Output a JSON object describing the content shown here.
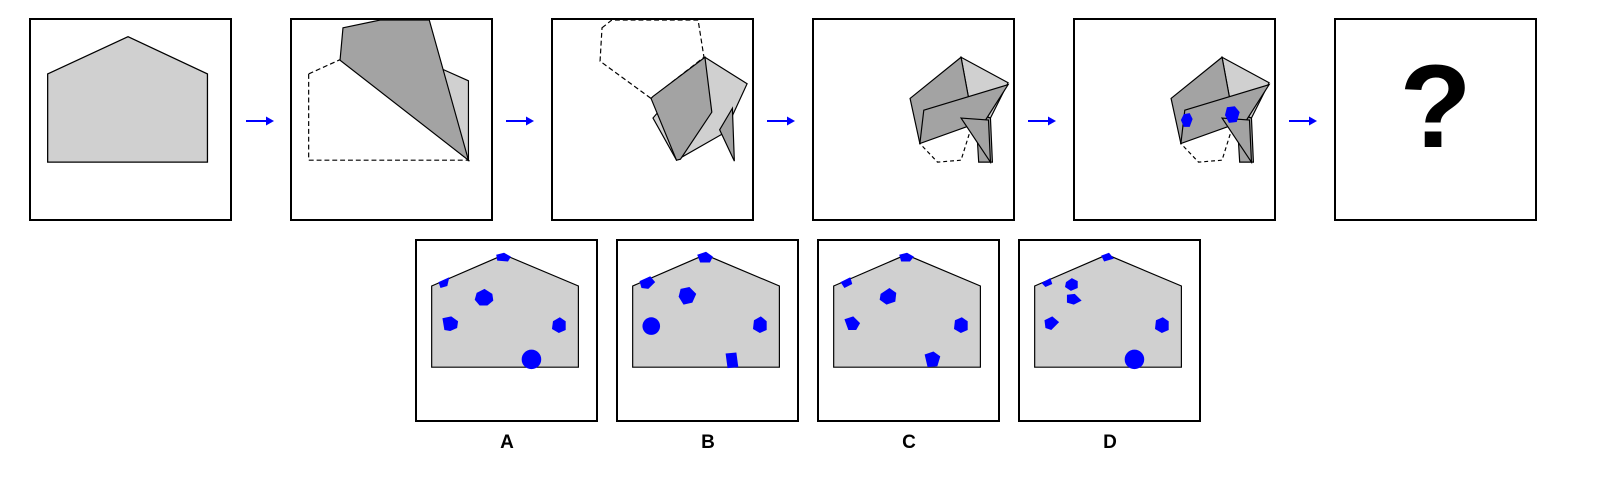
{
  "question": {
    "symbol": "?"
  },
  "options": [
    {
      "label": "A"
    },
    {
      "label": "B"
    },
    {
      "label": "C"
    },
    {
      "label": "D"
    }
  ],
  "colors": {
    "paper": "#d0d0d0",
    "folded": "#a3a3a3",
    "outline": "#000000",
    "punch": "#0000ff",
    "arrow": "#0000ff"
  }
}
